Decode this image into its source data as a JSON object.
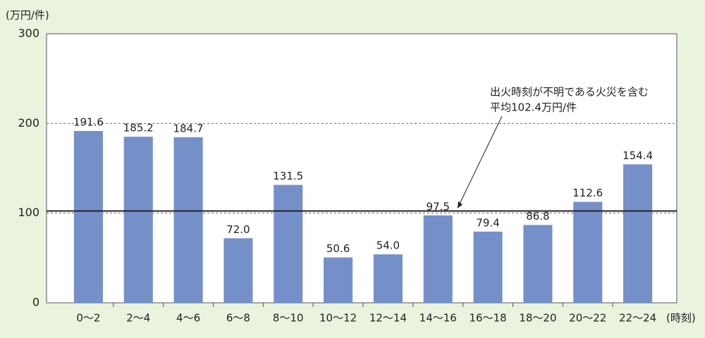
{
  "chart_data": {
    "type": "bar",
    "y_unit_label": "(万円/件)",
    "x_unit_label": "(時刻)",
    "categories": [
      "0～2",
      "2～4",
      "4～6",
      "6～8",
      "8～10",
      "10～12",
      "12～14",
      "14～16",
      "16～18",
      "18～20",
      "20～22",
      "22～24"
    ],
    "values": [
      191.6,
      185.2,
      184.7,
      72.0,
      131.5,
      50.6,
      54.0,
      97.5,
      79.4,
      86.8,
      112.6,
      154.4
    ],
    "value_labels": [
      "191.6",
      "185.2",
      "184.7",
      "72.0",
      "131.5",
      "50.6",
      "54.0",
      "97.5",
      "79.4",
      "86.8",
      "112.6",
      "154.4"
    ],
    "color": "#7590c9",
    "average": 102.4,
    "annotation": [
      "出火時刻が不明である火災を含む",
      "平均102.4万円/件"
    ],
    "ylim": [
      0,
      300
    ],
    "yticks": [
      0,
      100,
      200,
      300
    ],
    "grid": true
  }
}
